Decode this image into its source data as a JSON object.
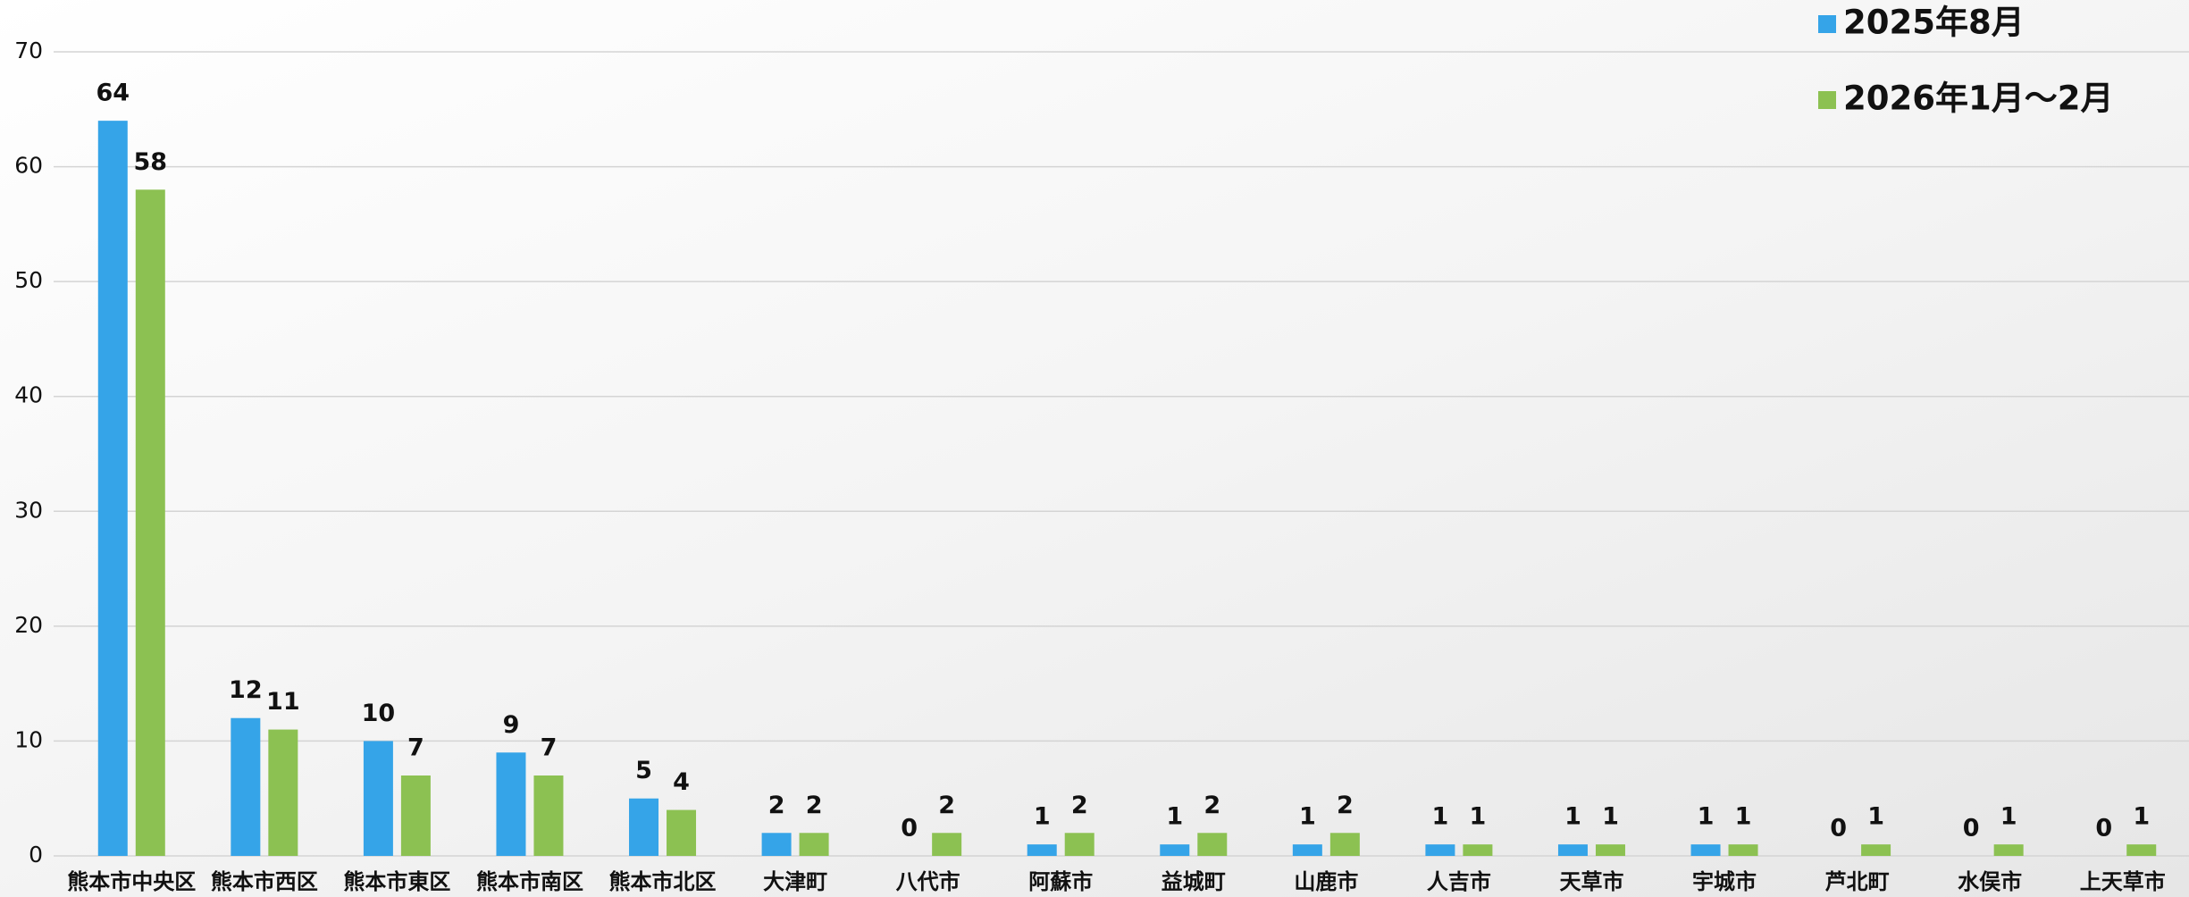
{
  "chart_data": {
    "type": "bar",
    "categories": [
      "熊本市中央区",
      "熊本市西区",
      "熊本市東区",
      "熊本市南区",
      "熊本市北区",
      "大津町",
      "八代市",
      "阿蘇市",
      "益城町",
      "山鹿市",
      "人吉市",
      "天草市",
      "宇城市",
      "芦北町",
      "水俣市",
      "上天草市"
    ],
    "series": [
      {
        "name": "2025年8月",
        "color": "#35a4e8",
        "values": [
          64,
          12,
          10,
          9,
          5,
          2,
          0,
          1,
          1,
          1,
          1,
          1,
          1,
          0,
          0,
          0
        ]
      },
      {
        "name": "2026年1月～2月",
        "color": "#8cc152",
        "values": [
          58,
          11,
          7,
          7,
          4,
          2,
          2,
          2,
          2,
          2,
          1,
          1,
          1,
          1,
          1,
          1
        ]
      }
    ],
    "ylim": [
      0,
      70
    ],
    "yticks": [
      0,
      10,
      20,
      30,
      40,
      50,
      60,
      70
    ],
    "grid": true,
    "legend": "top-right"
  }
}
